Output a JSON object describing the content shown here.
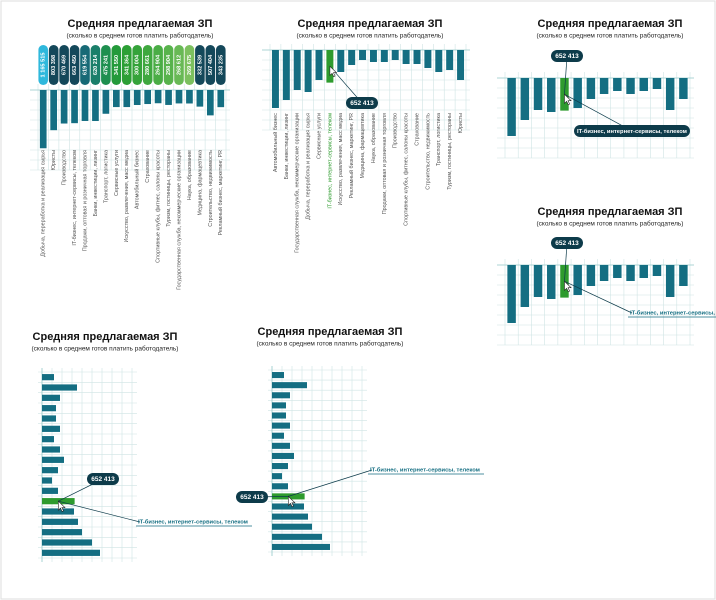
{
  "chart_data": [
    {
      "type": "bar",
      "orientation": "vertical-down",
      "title": "Средняя предлагаемая ЗП",
      "subtitle": "(сколько в среднем готов платить работодатель)",
      "categories": [
        "Добыча, переработка и реализация сырья",
        "Юристы",
        "Производство",
        "IT-бизнес, интернет-сервисы, телеком",
        "Продажи, оптовая и розничная торговля",
        "Банки, инвестиции, лизинг",
        "Транспорт, логистика",
        "Сервисные услуги",
        "Искусство, развлечения, масс медиа",
        "Автомобильный бизнес",
        "Страхование",
        "Спортивные клубы, фитнес, салоны красоты",
        "Туризм, гостиницы, рестораны",
        "Государственная служба, некоммерческие организации",
        "Наука, образование",
        "Медицина, фармацевтика",
        "Строительство, недвижимость",
        "Рекламный бизнес, маркетинг, PR"
      ],
      "values": [
        1165515,
        803398,
        670469,
        663450,
        619554,
        620214,
        475241,
        341550,
        341364,
        300004,
        280661,
        264904,
        298904,
        268612,
        269675,
        332539,
        507404,
        343235
      ],
      "value_labels": [
        "1 165 515",
        "803 398",
        "670 469",
        "663 450",
        "619 554",
        "620 214",
        "475 241",
        "341 550",
        "341 364",
        "300 004",
        "280 661",
        "264 904",
        "298 904",
        "268 612",
        "269 675",
        "332 539",
        "507 404",
        "343 235"
      ],
      "label_colors": [
        "#2fb8dc",
        "#14485a",
        "#14485a",
        "#14485a",
        "#176a76",
        "#1b7f6a",
        "#1e8f4f",
        "#239a3a",
        "#2c9f35",
        "#35a33a",
        "#3fa83f",
        "#4aad45",
        "#58b34c",
        "#68b955",
        "#7cc05e",
        "#14485a",
        "#14485a",
        "#14485a"
      ],
      "color": "#146e82",
      "ylim": [
        0,
        1200000
      ],
      "highlight": null,
      "annotations": []
    },
    {
      "type": "bar",
      "orientation": "vertical-down",
      "title": "Средняя предлагаемая ЗП",
      "subtitle": "(сколько в среднем готов платить работодатель)",
      "categories": [
        "Автомобильный бизнес",
        "Банки, инвестиции, лизинг",
        "Государственная служба, некоммерческие организации",
        "Добыча, переработка и реализация сырья",
        "Сервисные услуги",
        "IT-бизнес, интернет-сервисы, телеком",
        "Искусство, развлечения, масс медиа",
        "Рекламный бизнес, маркетинг, PR",
        "Медицина, фармацевтика",
        "Наука, образование",
        "Продажи, оптовая и розничная торговля",
        "Производство",
        "Спортивные клубы, фитнес, салоны красоты",
        "Страхование",
        "Строительство, недвижимость",
        "Транспорт, логистика",
        "Туризм, гостиницы, рестораны",
        "Юристы"
      ],
      "values": [
        1160000,
        1000000,
        800000,
        840000,
        600000,
        652413,
        440000,
        300000,
        200000,
        240000,
        240000,
        200000,
        280000,
        280000,
        360000,
        440000,
        400000,
        600000
      ],
      "color": "#146e82",
      "highlight_color": "#2e9b2e",
      "ylim": [
        0,
        1200000
      ],
      "highlight": 5,
      "annotations": [
        "652 413"
      ]
    },
    {
      "type": "bar",
      "orientation": "vertical-down",
      "title": "Средняя предлагаемая ЗП",
      "subtitle": "(сколько в среднем готов платить работодатель)",
      "categories": [
        null,
        null,
        null,
        null,
        null,
        null,
        null,
        null,
        null,
        null,
        null,
        null,
        null,
        null
      ],
      "values": [
        1160000,
        840000,
        640000,
        680000,
        652413,
        600000,
        420000,
        320000,
        260000,
        320000,
        260000,
        220000,
        640000,
        420000
      ],
      "color": "#146e82",
      "highlight_color": "#2e9b2e",
      "ylim": [
        0,
        1200000
      ],
      "highlight": 4,
      "annotations": [
        "652 413",
        "IT-бизнес, интернет-сервисы, телеком"
      ]
    },
    {
      "type": "bar",
      "orientation": "vertical-down",
      "title": "Средняя предлагаемая ЗП",
      "subtitle": "(сколько в среднем готов платить работодатель)",
      "categories": [
        null,
        null,
        null,
        null,
        null,
        null,
        null,
        null,
        null,
        null,
        null,
        null,
        null,
        null
      ],
      "values": [
        1160000,
        840000,
        640000,
        680000,
        652413,
        600000,
        420000,
        320000,
        260000,
        320000,
        260000,
        220000,
        640000,
        420000
      ],
      "color": "#146e82",
      "highlight_color": "#2e9b2e",
      "ylim": [
        0,
        1200000
      ],
      "highlight": 4,
      "annotations": [
        "652 413",
        "IT-бизнес, интернет-сервисы, телеком"
      ]
    },
    {
      "type": "bar",
      "orientation": "horizontal",
      "title": "Средняя предлагаемая ЗП",
      "subtitle": "(сколько в среднем готов платить работодатель)",
      "categories": [
        null,
        null,
        null,
        null,
        null,
        null,
        null,
        null,
        null,
        null,
        null,
        null,
        null,
        null,
        null,
        null,
        null,
        null
      ],
      "values": [
        240000,
        700000,
        360000,
        280000,
        280000,
        360000,
        240000,
        360000,
        440000,
        320000,
        200000,
        320000,
        652413,
        640000,
        720000,
        800000,
        1000000,
        1160000
      ],
      "color": "#146e82",
      "highlight_color": "#2e9b2e",
      "xlim": [
        0,
        1200000
      ],
      "highlight": 12,
      "annotations": [
        "652 413",
        "IT-бизнес, интернет-сервисы, телеком"
      ]
    },
    {
      "type": "bar",
      "orientation": "horizontal",
      "title": "Средняя предлагаемая ЗП",
      "subtitle": "(сколько в среднем готов платить работодатель)",
      "categories": [
        null,
        null,
        null,
        null,
        null,
        null,
        null,
        null,
        null,
        null,
        null,
        null,
        null,
        null,
        null,
        null,
        null,
        null
      ],
      "values": [
        240000,
        700000,
        360000,
        280000,
        280000,
        360000,
        240000,
        360000,
        440000,
        320000,
        200000,
        320000,
        652413,
        640000,
        720000,
        800000,
        1000000,
        1160000
      ],
      "color": "#146e82",
      "highlight_color": "#2e9b2e",
      "xlim": [
        0,
        1200000
      ],
      "highlight": 12,
      "annotations": [
        "652 413",
        "IT-бизнес, интернет-сервисы, телеком"
      ]
    }
  ]
}
